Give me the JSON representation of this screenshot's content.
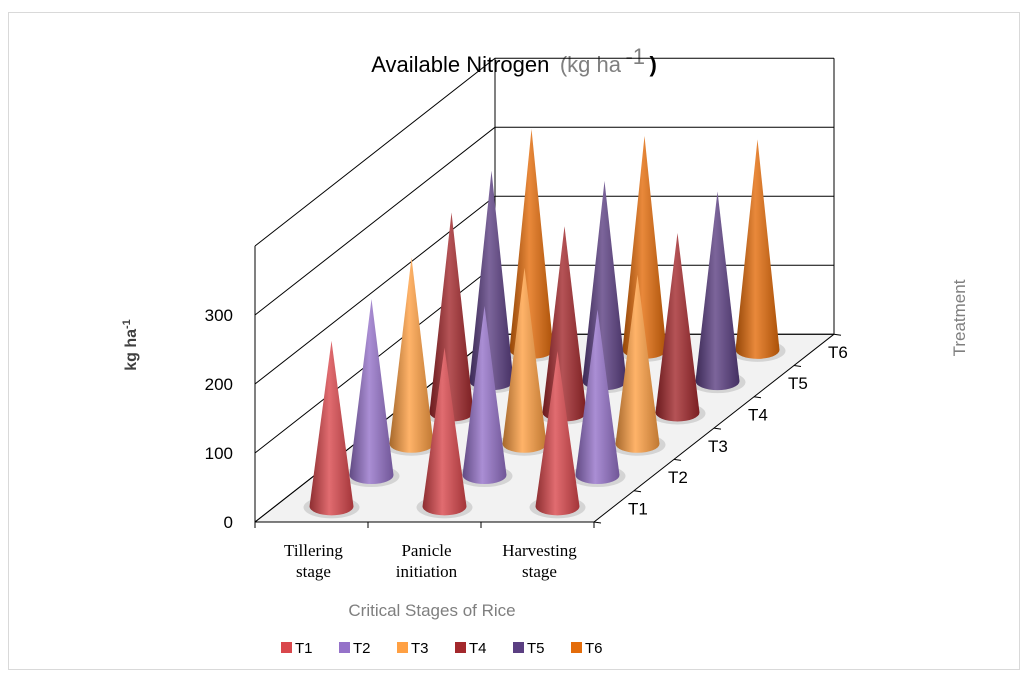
{
  "chart_data": {
    "type": "bar",
    "subtype": "3d-cone",
    "title": "Available Nitrogen",
    "title_unit": "(kg ha",
    "title_unit_sup": "-1",
    "title_unit_close": ")",
    "xlabel": "Critical Stages of Rice",
    "ylabel": "kg ha",
    "ylabel_sup": "-1",
    "zlabel": "Treatment",
    "categories": [
      "Tillering stage",
      "Panicle initiation",
      "Harvesting stage"
    ],
    "category_lines": [
      [
        "Tillering",
        "stage"
      ],
      [
        "Panicle",
        "initiation"
      ],
      [
        "Harvesting",
        "stage"
      ]
    ],
    "y_ticks": [
      "0",
      "100",
      "200",
      "300"
    ],
    "ylim": [
      0,
      300
    ],
    "grid": true,
    "legend_position": "bottom",
    "series": [
      {
        "name": "T1",
        "color": "#d9474c",
        "values": [
          240,
          230,
          225
        ]
      },
      {
        "name": "T2",
        "color": "#9572c9",
        "values": [
          255,
          245,
          240
        ]
      },
      {
        "name": "T3",
        "color": "#ffa043",
        "values": [
          270,
          255,
          245
        ]
      },
      {
        "name": "T4",
        "color": "#a3282c",
        "values": [
          290,
          270,
          260
        ]
      },
      {
        "name": "T5",
        "color": "#5b3f82",
        "values": [
          305,
          290,
          275
        ]
      },
      {
        "name": "T6",
        "color": "#e46c0a",
        "values": [
          320,
          310,
          305
        ]
      }
    ]
  }
}
